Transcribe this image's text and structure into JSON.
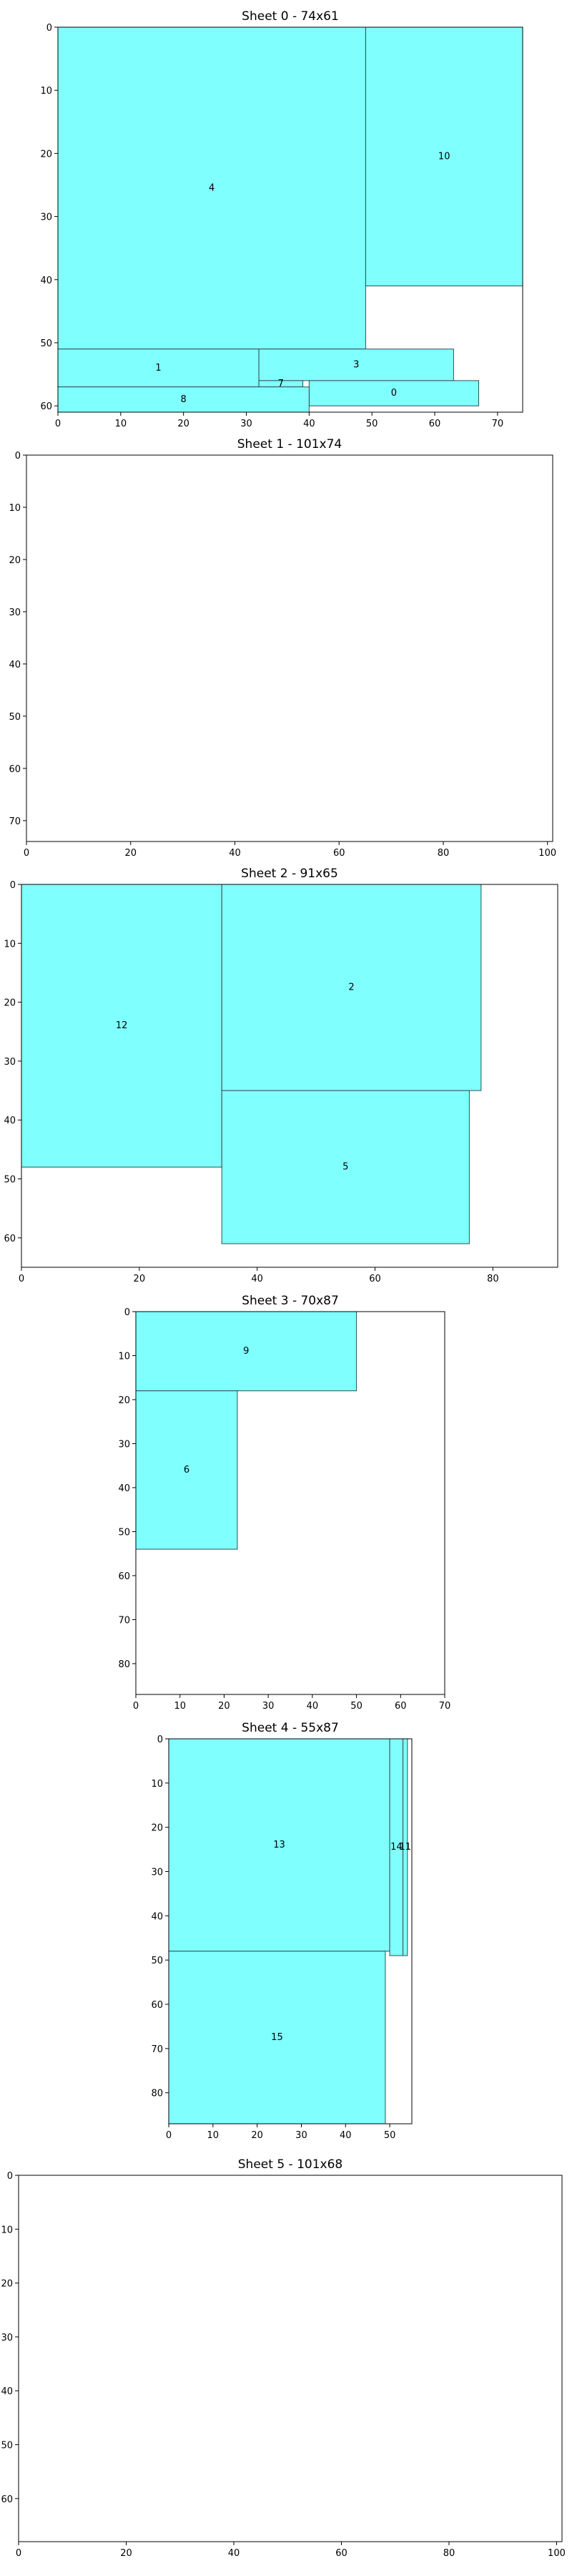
{
  "chart_data": [
    {
      "type": "packing",
      "title": "Sheet 0 - 74x61",
      "xlim": [
        0,
        74
      ],
      "ylim": [
        0,
        61
      ],
      "xticks": [
        0,
        10,
        20,
        30,
        40,
        50,
        60,
        70
      ],
      "yticks": [
        0,
        10,
        20,
        30,
        40,
        50,
        60
      ],
      "pieces": [
        {
          "label": "4",
          "x": 0,
          "y": 0,
          "w": 49,
          "h": 51
        },
        {
          "label": "10",
          "x": 49,
          "y": 0,
          "w": 25,
          "h": 41
        },
        {
          "label": "1",
          "x": 0,
          "y": 51,
          "w": 32,
          "h": 6
        },
        {
          "label": "3",
          "x": 32,
          "y": 51,
          "w": 31,
          "h": 5
        },
        {
          "label": "7",
          "x": 32,
          "y": 56,
          "w": 7,
          "h": 1
        },
        {
          "label": "0",
          "x": 40,
          "y": 56,
          "w": 27,
          "h": 4
        },
        {
          "label": "8",
          "x": 0,
          "y": 57,
          "w": 40,
          "h": 4
        }
      ]
    },
    {
      "type": "packing",
      "title": "Sheet 1 - 101x74",
      "xlim": [
        0,
        101
      ],
      "ylim": [
        0,
        74
      ],
      "xticks": [
        0,
        20,
        40,
        60,
        80,
        100
      ],
      "yticks": [
        0,
        10,
        20,
        30,
        40,
        50,
        60,
        70
      ],
      "pieces": []
    },
    {
      "type": "packing",
      "title": "Sheet 2 - 91x65",
      "xlim": [
        0,
        91
      ],
      "ylim": [
        0,
        65
      ],
      "xticks": [
        0,
        20,
        40,
        60,
        80
      ],
      "yticks": [
        0,
        10,
        20,
        30,
        40,
        50,
        60
      ],
      "pieces": [
        {
          "label": "12",
          "x": 0,
          "y": 0,
          "w": 34,
          "h": 48
        },
        {
          "label": "2",
          "x": 34,
          "y": 0,
          "w": 44,
          "h": 35
        },
        {
          "label": "5",
          "x": 34,
          "y": 35,
          "w": 42,
          "h": 26
        }
      ]
    },
    {
      "type": "packing",
      "title": "Sheet 3 - 70x87",
      "xlim": [
        0,
        70
      ],
      "ylim": [
        0,
        87
      ],
      "xticks": [
        0,
        10,
        20,
        30,
        40,
        50,
        60,
        70
      ],
      "yticks": [
        0,
        10,
        20,
        30,
        40,
        50,
        60,
        70,
        80
      ],
      "pieces": [
        {
          "label": "9",
          "x": 0,
          "y": 0,
          "w": 50,
          "h": 18
        },
        {
          "label": "6",
          "x": 0,
          "y": 18,
          "w": 23,
          "h": 36
        }
      ]
    },
    {
      "type": "packing",
      "title": "Sheet 4 - 55x87",
      "xlim": [
        0,
        55
      ],
      "ylim": [
        0,
        87
      ],
      "xticks": [
        0,
        10,
        20,
        30,
        40,
        50
      ],
      "yticks": [
        0,
        10,
        20,
        30,
        40,
        50,
        60,
        70,
        80
      ],
      "pieces": [
        {
          "label": "13",
          "x": 0,
          "y": 0,
          "w": 50,
          "h": 48
        },
        {
          "label": "14",
          "x": 50,
          "y": 0,
          "w": 3,
          "h": 49
        },
        {
          "label": "11",
          "x": 53,
          "y": 0,
          "w": 1,
          "h": 49
        },
        {
          "label": "15",
          "x": 0,
          "y": 48,
          "w": 49,
          "h": 39
        }
      ]
    },
    {
      "type": "packing",
      "title": "Sheet 5 - 101x68",
      "xlim": [
        0,
        101
      ],
      "ylim": [
        0,
        68
      ],
      "xticks": [
        0,
        20,
        40,
        60,
        80,
        100
      ],
      "yticks": [
        0,
        10,
        20,
        30,
        40,
        50,
        60
      ],
      "pieces": []
    }
  ],
  "colors": {
    "piece_fill": "#80ffff",
    "piece_edge": "#2f4f4f",
    "frame": "#000000"
  }
}
